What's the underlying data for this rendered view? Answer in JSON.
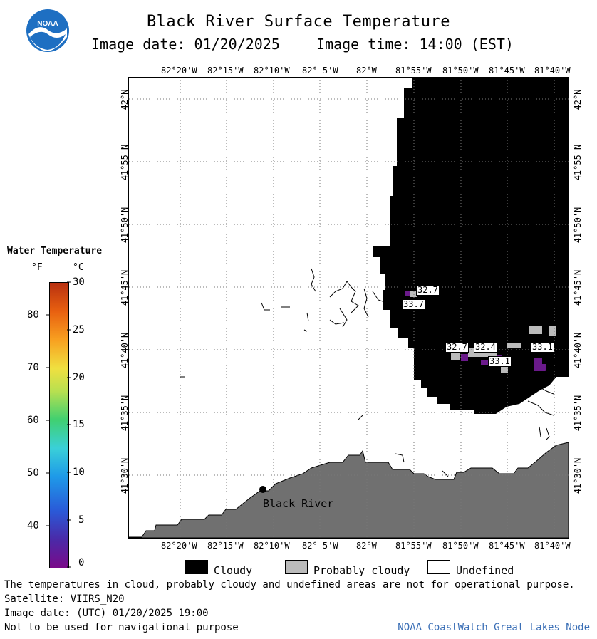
{
  "header": {
    "title": "Black River Surface Temperature",
    "date_label": "Image date: 01/20/2025",
    "time_label": "Image time: 14:00 (EST)"
  },
  "logo": {
    "text": "NOAA",
    "icon": "noaa-logo"
  },
  "map": {
    "lon_ticks_top": [
      "82°20'W",
      "82°15'W",
      "82°10'W",
      "82° 5'W",
      "82°W",
      "81°55'W",
      "81°50'W",
      "81°45'W",
      "81°40'W"
    ],
    "lon_ticks_bottom": [
      "82°20'W",
      "82°15'W",
      "82°10'W",
      "82° 5'W",
      "82°W",
      "81°55'W",
      "81°50'W",
      "81°45'W",
      "81°40'W"
    ],
    "lat_ticks": [
      "42°N",
      "41°55'N",
      "41°50'N",
      "41°45'N",
      "41°40'N",
      "41°35'N",
      "41°30'N"
    ],
    "place_label": "Black River",
    "temp_labels": [
      "32.7",
      "33.7",
      "32.7",
      "32.4",
      "33.1",
      "33.1"
    ],
    "colors": {
      "cloudy": "#000000",
      "probably_cloudy": "#bbbbbb",
      "land": "#707070",
      "undefined": "#ffffff",
      "warm_pixel": "#6a1a8a"
    }
  },
  "legend": {
    "title": "Water Temperature",
    "unit_f": "°F",
    "unit_c": "°C",
    "f_ticks": [
      "80",
      "70",
      "60",
      "50",
      "40"
    ],
    "c_ticks": [
      "30",
      "25",
      "20",
      "15",
      "10",
      "5",
      "0"
    ]
  },
  "key": {
    "cloudy": "Cloudy",
    "probably_cloudy": "Probably cloudy",
    "undefined": "Undefined"
  },
  "footer": {
    "disclaimer": "The temperatures in cloud, probably cloudy and undefined areas are not for operational purpose.",
    "satellite": "Satellite: VIIRS_N20",
    "utc_date": "Image date: (UTC) 01/20/2025  19:00",
    "nav_warning": "Not to be used for navigational purpose",
    "credit": "NOAA CoastWatch Great Lakes Node"
  }
}
